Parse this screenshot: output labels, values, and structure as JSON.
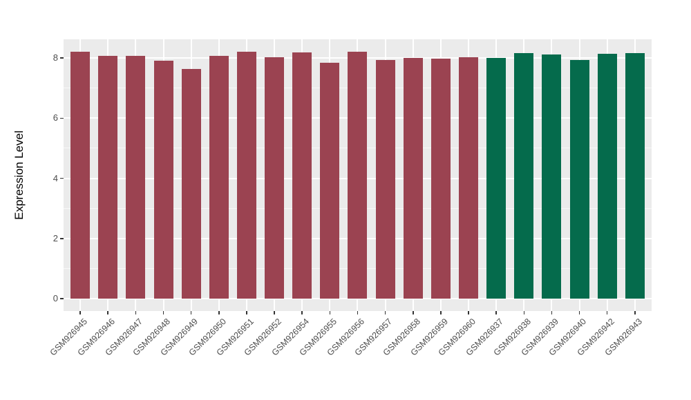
{
  "chart_data": {
    "type": "bar",
    "title": "",
    "xlabel": "",
    "ylabel": "Expression Level",
    "ylim": [
      0,
      8.63
    ],
    "yticks": [
      0,
      2,
      4,
      6,
      8
    ],
    "yticks_minor": [
      1,
      3,
      5,
      7
    ],
    "legend": "none",
    "grid": {
      "show_major": true,
      "show_minor": true
    },
    "categories": [
      "GSM926945",
      "GSM926946",
      "GSM926947",
      "GSM926948",
      "GSM926949",
      "GSM926950",
      "GSM926951",
      "GSM926952",
      "GSM926954",
      "GSM926955",
      "GSM926956",
      "GSM926957",
      "GSM926958",
      "GSM926959",
      "GSM926960",
      "GSM926937",
      "GSM926938",
      "GSM926939",
      "GSM926940",
      "GSM926942",
      "GSM926943"
    ],
    "values": [
      8.21,
      8.08,
      8.08,
      7.91,
      7.64,
      8.07,
      8.2,
      8.02,
      8.18,
      7.84,
      8.2,
      7.94,
      8.0,
      7.97,
      8.03,
      8.0,
      8.17,
      8.12,
      7.93,
      8.13,
      8.17
    ],
    "bar_groups": [
      "A",
      "A",
      "A",
      "A",
      "A",
      "A",
      "A",
      "A",
      "A",
      "A",
      "A",
      "A",
      "A",
      "A",
      "A",
      "B",
      "B",
      "B",
      "B",
      "B",
      "B"
    ],
    "group_colors": {
      "A": "#9B4351",
      "B": "#056B4C"
    }
  },
  "style_colors": {
    "panel_background": "#EBEBEB",
    "gridline": "#FFFFFF",
    "tick_mark": "#333333",
    "tick_label": "#4D4D4D",
    "axis_title": "#000000"
  }
}
